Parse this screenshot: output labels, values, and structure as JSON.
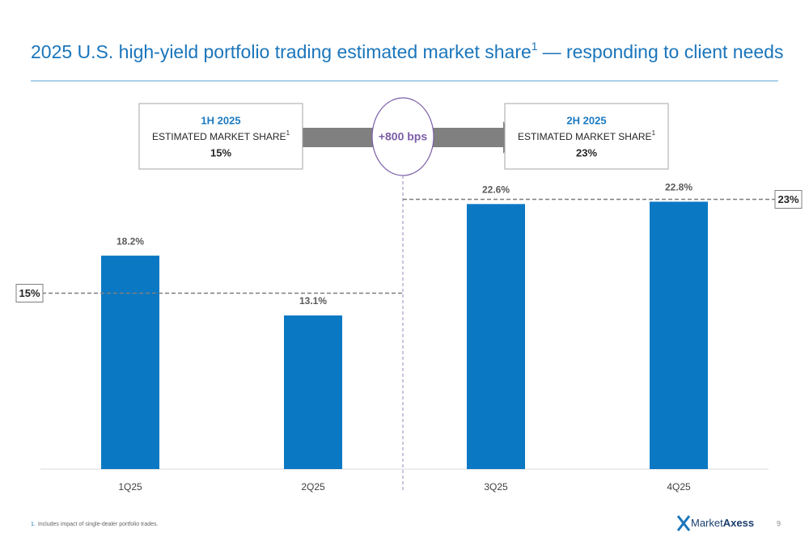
{
  "chart_data": {
    "type": "bar",
    "title": {
      "text": "2025 U.S. high-yield portfolio trading estimated market share",
      "footnote_mark": "1",
      "suffix": "— responding to client needs"
    },
    "categories": [
      "1Q25",
      "2Q25",
      "3Q25",
      "4Q25"
    ],
    "values": [
      18.2,
      13.1,
      22.6,
      22.8
    ],
    "value_labels": [
      "18.2%",
      "13.1%",
      "22.6%",
      "22.8%"
    ],
    "color": "#0b78c4",
    "reference_lines": [
      {
        "value": 15,
        "label": "15%"
      },
      {
        "value": 23,
        "label": "23%"
      }
    ],
    "boxes": [
      {
        "period": "1H 2025",
        "caption": "ESTIMATED MARKET SHARE",
        "footnote_mark": "1"
      },
      {
        "period": "2H 2025",
        "caption": "ESTIMATED MARKET SHARE",
        "footnote_mark": "1"
      }
    ],
    "change_label": "+800 bps",
    "footnote": {
      "mark": "1.",
      "text": "Includes impact of single-dealer portfolio trades."
    },
    "logo": {
      "part1": "Market",
      "part2": "Axess"
    },
    "page_number": "9"
  }
}
